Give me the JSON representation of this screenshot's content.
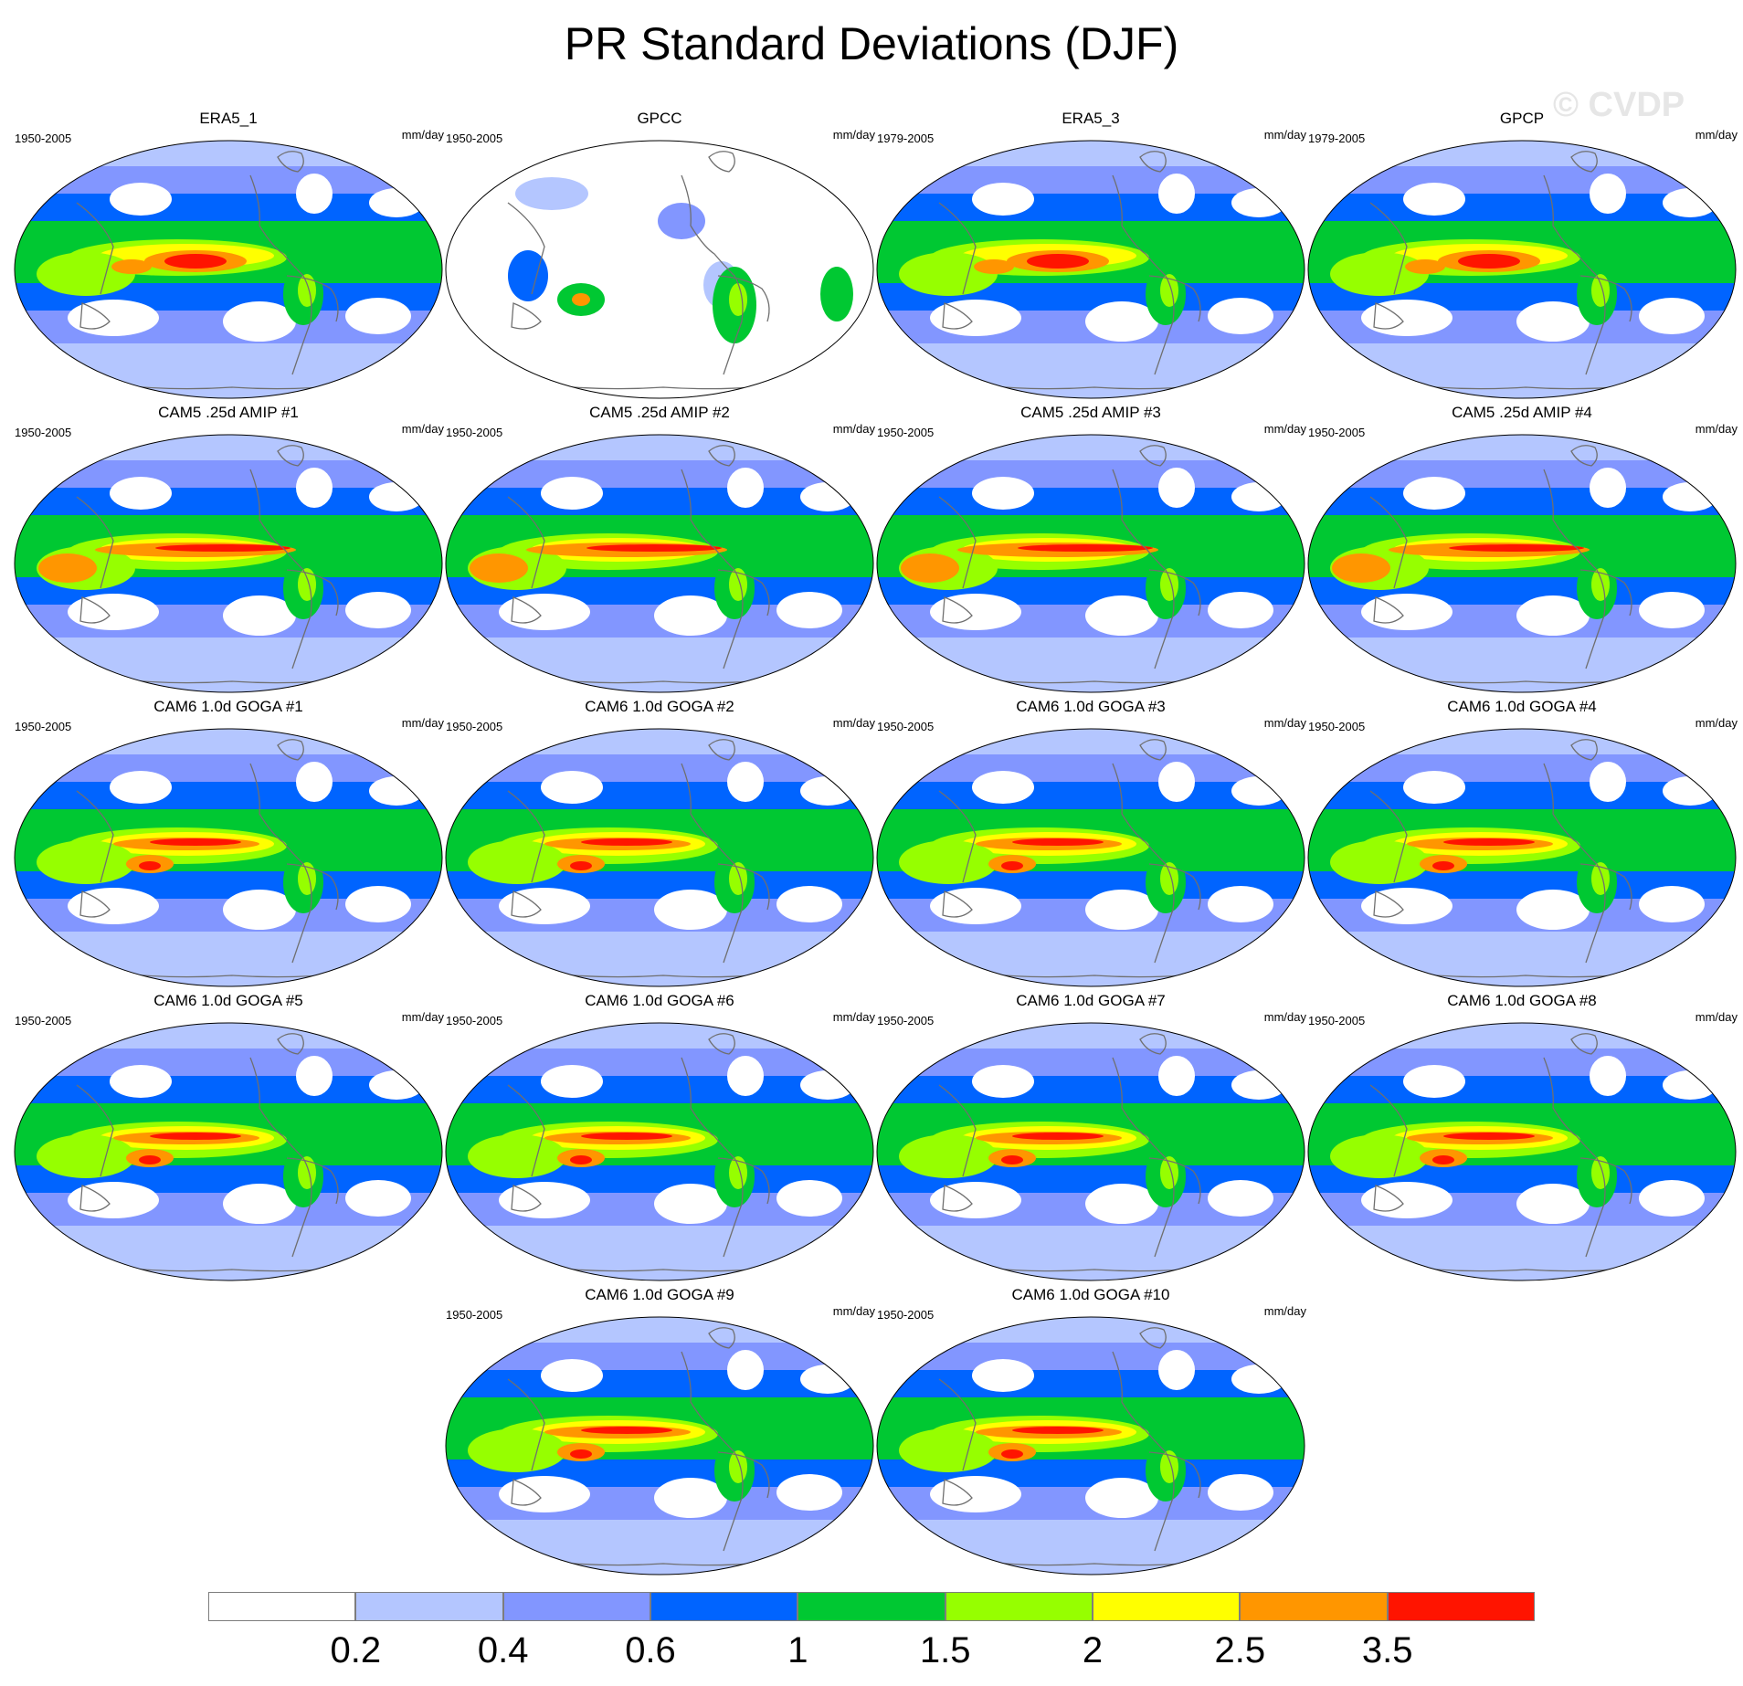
{
  "title": "PR Standard Deviations (DJF)",
  "watermark": "© CVDP",
  "panels": [
    {
      "title": "ERA5_1",
      "years": "1950-2005",
      "units": "mm/day",
      "kind": "obs"
    },
    {
      "title": "GPCC",
      "years": "1950-2005",
      "units": "mm/day",
      "kind": "land"
    },
    {
      "title": "ERA5_3",
      "years": "1979-2005",
      "units": "mm/day",
      "kind": "obs"
    },
    {
      "title": "GPCP",
      "years": "1979-2005",
      "units": "mm/day",
      "kind": "gpcp"
    },
    {
      "title": "CAM5 .25d AMIP #1",
      "years": "1950-2005",
      "units": "mm/day",
      "kind": "amip"
    },
    {
      "title": "CAM5 .25d AMIP #2",
      "years": "1950-2005",
      "units": "mm/day",
      "kind": "amip"
    },
    {
      "title": "CAM5 .25d AMIP #3",
      "years": "1950-2005",
      "units": "mm/day",
      "kind": "amip"
    },
    {
      "title": "CAM5 .25d AMIP #4",
      "years": "1950-2005",
      "units": "mm/day",
      "kind": "amip"
    },
    {
      "title": "CAM6 1.0d GOGA #1",
      "years": "1950-2005",
      "units": "mm/day",
      "kind": "goga"
    },
    {
      "title": "CAM6 1.0d GOGA #2",
      "years": "1950-2005",
      "units": "mm/day",
      "kind": "goga"
    },
    {
      "title": "CAM6 1.0d GOGA #3",
      "years": "1950-2005",
      "units": "mm/day",
      "kind": "goga"
    },
    {
      "title": "CAM6 1.0d GOGA #4",
      "years": "1950-2005",
      "units": "mm/day",
      "kind": "goga"
    },
    {
      "title": "CAM6 1.0d GOGA #5",
      "years": "1950-2005",
      "units": "mm/day",
      "kind": "goga"
    },
    {
      "title": "CAM6 1.0d GOGA #6",
      "years": "1950-2005",
      "units": "mm/day",
      "kind": "goga"
    },
    {
      "title": "CAM6 1.0d GOGA #7",
      "years": "1950-2005",
      "units": "mm/day",
      "kind": "goga"
    },
    {
      "title": "CAM6 1.0d GOGA #8",
      "years": "1950-2005",
      "units": "mm/day",
      "kind": "goga"
    },
    {
      "title": "CAM6 1.0d GOGA #9",
      "years": "1950-2005",
      "units": "mm/day",
      "kind": "goga"
    },
    {
      "title": "CAM6 1.0d GOGA #10",
      "years": "1950-2005",
      "units": "mm/day",
      "kind": "goga"
    }
  ],
  "colorbar": {
    "colors": [
      "#ffffff",
      "#b4c6ff",
      "#8296ff",
      "#0064ff",
      "#00c832",
      "#96ff00",
      "#ffff00",
      "#ff9600",
      "#ff1400"
    ],
    "labels": [
      "0.2",
      "0.4",
      "0.6",
      "1",
      "1.5",
      "2",
      "2.5",
      "3.5"
    ]
  }
}
